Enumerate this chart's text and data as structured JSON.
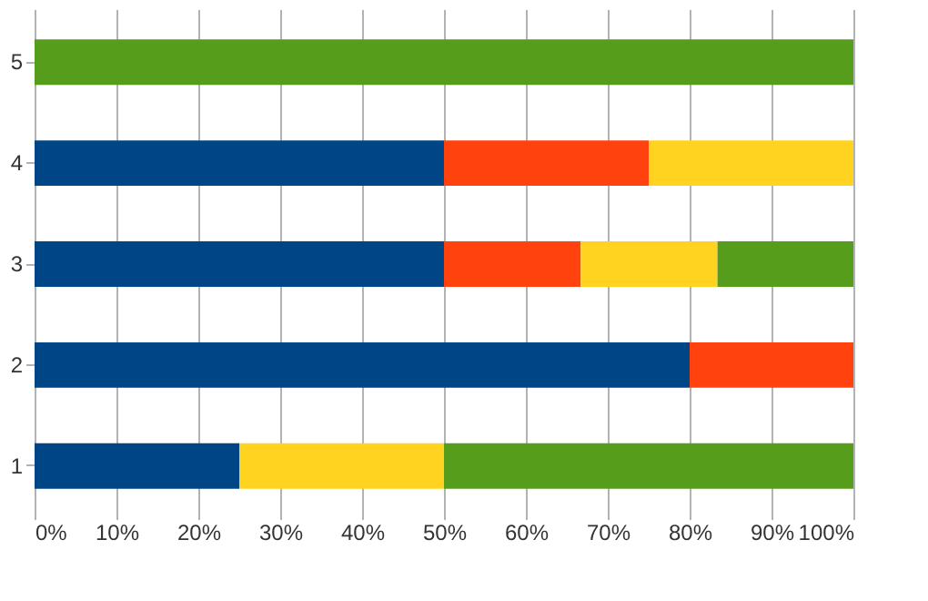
{
  "chart_data": {
    "type": "bar",
    "orientation": "horizontal",
    "stacked": true,
    "categories": [
      "5",
      "4",
      "3",
      "2",
      "1"
    ],
    "series": [
      {
        "color": "#004586",
        "values": [
          null,
          50,
          50,
          80,
          25
        ]
      },
      {
        "color": "#ff420e",
        "values": [
          null,
          25,
          16.7,
          20,
          null
        ]
      },
      {
        "color": "#ffd320",
        "values": [
          null,
          25,
          16.7,
          null,
          25
        ]
      },
      {
        "color": "#579d1c",
        "values": [
          100,
          null,
          16.6,
          null,
          50
        ]
      }
    ],
    "xlim": [
      0,
      100
    ],
    "xticks": [
      {
        "value": 0,
        "label": "0%"
      },
      {
        "value": 10,
        "label": "10%"
      },
      {
        "value": 20,
        "label": "20%"
      },
      {
        "value": 30,
        "label": "30%"
      },
      {
        "value": 40,
        "label": "40%"
      },
      {
        "value": 50,
        "label": "50%"
      },
      {
        "value": 60,
        "label": "60%"
      },
      {
        "value": 70,
        "label": "70%"
      },
      {
        "value": 80,
        "label": "80%"
      },
      {
        "value": 90,
        "label": "90%"
      },
      {
        "value": 100,
        "label": "100%"
      }
    ],
    "grid": "x"
  }
}
